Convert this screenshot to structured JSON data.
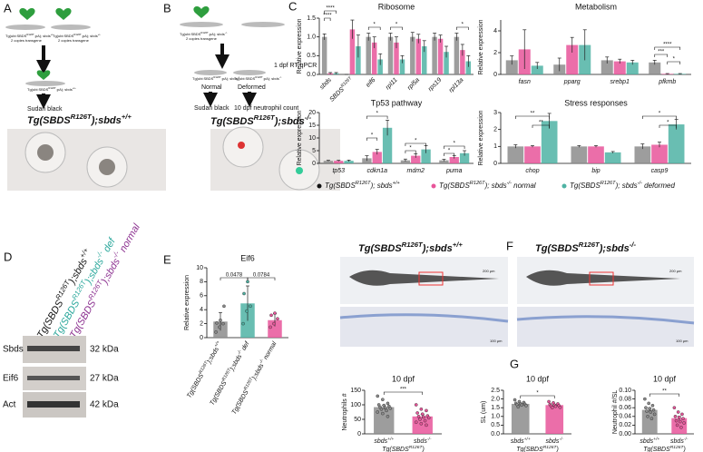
{
  "panel_labels": [
    "A",
    "B",
    "C",
    "D",
    "E",
    "F",
    "G"
  ],
  "panel_a": {
    "parents": [
      [
        "Tg(ubi:SBDS",
        "R126T",
        ";pA); sbds",
        "+/-"
      ],
      [
        "Tg(ubi:SBDS",
        "R126T",
        ";pA); sbds",
        "+/-"
      ]
    ],
    "parent_notes": [
      "2 copies transgene",
      "2 copies transgene"
    ],
    "offspring": [
      "Tg(ubi:SBDS",
      "R126T",
      ";pA); sbds",
      "+/+"
    ],
    "stain": "Sudan black",
    "title": [
      "Tg(SBDS",
      "R126T",
      ");sbds",
      "+/+"
    ]
  },
  "panel_b": {
    "parents": [
      [
        "Tg(ubi:SBDS",
        "R126T",
        ";pA); sbds",
        "-/-"
      ]
    ],
    "parent_notes": [
      "2 copies transgene"
    ],
    "offspring": [
      [
        "Tg(ubi:SBDS",
        "R126T",
        ";pA); sbds",
        "-/-"
      ],
      [
        "Tg(ubi:SBDS",
        "R126T",
        ";pA); sbds",
        "-/-"
      ]
    ],
    "step": "1 dpf RT-qPCR",
    "phenotypes": [
      "Normal",
      "Deformed"
    ],
    "outcomes": [
      "Sudan black",
      "10 dpf neutrophil count"
    ],
    "title": [
      "Tg(SBDS",
      "R126T",
      ");sbds",
      "-/-"
    ]
  },
  "panel_d": {
    "lanes": [
      [
        "Tg(SBDS",
        "R126T",
        ");sbds",
        "+/+"
      ],
      [
        "Tg(SBDS",
        "R126T",
        ");sbds",
        "-/-",
        " def"
      ],
      [
        "Tg(SBDS",
        "R126T",
        ");sbds",
        "-/-",
        " normal"
      ]
    ],
    "proteins": [
      "Sbds",
      "Eif6",
      "Act"
    ],
    "sizes": [
      "32 kDa",
      "27 kDa",
      "42 kDa"
    ]
  },
  "panel_f": {
    "titles": [
      [
        "Tg(SBDS",
        "R126T",
        ");sbds",
        "+/+"
      ],
      [
        "Tg(SBDS",
        "R126T",
        ");sbds",
        "-/-"
      ]
    ],
    "scale_bars": [
      "200 μm",
      "200 μm",
      "100 μm",
      "100 μm"
    ]
  },
  "chart_data": [
    {
      "type": "bar",
      "title": "Ribosome",
      "y_label": "Relative expression",
      "categories": [
        "sbds",
        [
          "SBDS",
          "R126T"
        ],
        "eif6",
        "rpl11",
        "rpl5a",
        "rps19",
        "rpl13a"
      ],
      "series": [
        {
          "name": [
            "Tg(SBDS",
            "R126T",
            "); sbds",
            "+/+"
          ],
          "color": "#8c8c8c",
          "values": [
            1.0,
            0,
            1.0,
            1.0,
            1.0,
            1.0,
            1.0
          ],
          "errors": [
            0.08,
            0,
            0.1,
            0.1,
            0.12,
            0.1,
            0.1
          ]
        },
        {
          "name": [
            "Tg(SBDS",
            "R126T",
            "); sbds",
            "-/-",
            " normal"
          ],
          "color": "#e8559a",
          "values": [
            0.03,
            1.2,
            0.85,
            0.85,
            0.95,
            0.95,
            0.65
          ],
          "errors": [
            0.02,
            0.25,
            0.15,
            0.15,
            0.12,
            0.1,
            0.15
          ]
        },
        {
          "name": [
            "Tg(SBDS",
            "R126T",
            "); sbds",
            "-/-",
            " deformed"
          ],
          "color": "#4fb3a4",
          "values": [
            0.03,
            0.75,
            0.4,
            0.4,
            0.75,
            0.6,
            0.35
          ],
          "errors": [
            0.02,
            0.3,
            0.15,
            0.1,
            0.15,
            0.15,
            0.15
          ]
        }
      ],
      "ylim": [
        0,
        1.5
      ],
      "yticks": [
        {
          "value": 0,
          "label": "0.0"
        },
        0.5,
        {
          "value": 1,
          "label": "1.0"
        },
        1.5
      ],
      "annotations": [
        "****",
        "****",
        "*",
        "*",
        "*"
      ]
    },
    {
      "type": "bar",
      "title": "Metabolism",
      "y_label": "Relative expression",
      "categories": [
        "fasn",
        "pparg",
        "srebp1",
        "pfkmb"
      ],
      "series": [
        {
          "color": "#8c8c8c",
          "values": [
            1.3,
            0.9,
            1.3,
            1.1
          ],
          "errors": [
            0.4,
            0.6,
            0.3,
            0.2
          ]
        },
        {
          "color": "#e8559a",
          "values": [
            2.3,
            2.7,
            1.2,
            0.05
          ],
          "errors": [
            1.8,
            0.7,
            0.2,
            0.03
          ]
        },
        {
          "color": "#4fb3a4",
          "values": [
            0.8,
            2.7,
            1.1,
            0.05
          ],
          "errors": [
            0.3,
            1.4,
            0.2,
            0.03
          ]
        }
      ],
      "ylim": [
        0,
        5
      ],
      "yticks": [
        0,
        2,
        4
      ],
      "annotations": [
        "****",
        "***",
        "*"
      ]
    },
    {
      "type": "bar",
      "title": "Tp53 pathway",
      "y_label": "Relative expression",
      "categories": [
        "tp53",
        "cdkn1a",
        "mdm2",
        "puma"
      ],
      "series": [
        {
          "color": "#8c8c8c",
          "values": [
            1,
            2,
            1.2,
            1.2
          ],
          "errors": [
            0.2,
            1,
            0.5,
            0.4
          ]
        },
        {
          "color": "#e8559a",
          "values": [
            1,
            4.5,
            3,
            2.5
          ],
          "errors": [
            0.2,
            1,
            0.8,
            0.6
          ]
        },
        {
          "color": "#4fb3a4",
          "values": [
            1,
            14,
            5.5,
            4
          ],
          "errors": [
            0.3,
            3,
            1.5,
            1
          ]
        }
      ],
      "ylim": [
        0,
        20
      ],
      "yticks": [
        0,
        5,
        10,
        15,
        20
      ],
      "annotations": [
        "*",
        "*",
        "*",
        "*",
        "*",
        "*"
      ]
    },
    {
      "type": "bar",
      "title": "Stress responses",
      "y_label": "Relative expression",
      "categories": [
        "chop",
        "bip",
        "casp9"
      ],
      "series": [
        {
          "color": "#8c8c8c",
          "values": [
            1,
            1,
            1
          ],
          "errors": [
            0.1,
            0.05,
            0.15
          ]
        },
        {
          "color": "#e8559a",
          "values": [
            1,
            1,
            1.1
          ],
          "errors": [
            0.05,
            0.05,
            0.15
          ]
        },
        {
          "color": "#4fb3a4",
          "values": [
            2.5,
            0.65,
            2.3
          ],
          "errors": [
            0.45,
            0.05,
            0.3
          ]
        }
      ],
      "ylim": [
        0,
        3
      ],
      "yticks": [
        0,
        1,
        2,
        3
      ],
      "annotations": [
        "**",
        "**",
        "*",
        "*"
      ]
    },
    {
      "type": "bar",
      "title": "Eif6",
      "y_label": "Relative expression",
      "categories": [
        [
          "Tg(SBDS",
          "R126T",
          ");sbds",
          "+/+"
        ],
        [
          "Tg(SBDS",
          "R126T",
          ");sbds",
          "-/-",
          " def"
        ],
        [
          "Tg(SBDS",
          "R126T",
          ");sbds",
          "-/-",
          " normal"
        ]
      ],
      "values": [
        2.3,
        4.9,
        2.5
      ],
      "errors": [
        1.3,
        2.5,
        0.9
      ],
      "colors": [
        "#8c8c8c",
        "#4fb3a4",
        "#e8559a"
      ],
      "points": [
        [
          0.8,
          1.5,
          2.0,
          2.1,
          2.5,
          4.5
        ],
        [
          2.0,
          3.8,
          4.5,
          6.3,
          8.0
        ],
        [
          1.5,
          2.0,
          2.7,
          3.2,
          3.5
        ]
      ],
      "ylim": [
        0,
        10
      ],
      "yticks": [
        0,
        2,
        4,
        6,
        8,
        10
      ],
      "annotations": [
        0.0478,
        0.0784
      ]
    },
    {
      "type": "bar",
      "title": "10 dpf",
      "y_label": "Neutrophils #",
      "x_label": [
        "Tg(SBDS",
        "R126T",
        ")"
      ],
      "categories": [
        [
          "sbds",
          "+/+"
        ],
        [
          "sbds",
          "-/-"
        ]
      ],
      "values": [
        92,
        60
      ],
      "errors": [
        7,
        7
      ],
      "colors": [
        "#8c8c8c",
        "#e8559a"
      ],
      "points": [
        [
          130,
          118,
          105,
          100,
          98,
          95,
          92,
          90,
          88,
          85,
          80,
          75,
          70,
          60
        ],
        [
          100,
          85,
          80,
          72,
          68,
          62,
          60,
          58,
          55,
          50,
          45,
          40,
          35,
          30
        ]
      ],
      "ylim": [
        0,
        150
      ],
      "yticks": [
        0,
        50,
        100,
        150
      ],
      "annotations": [
        "***"
      ]
    },
    {
      "type": "bar",
      "title": "10 dpf",
      "y_label": "SL (um)",
      "x_label": [
        "Tg(SBDS",
        "R126T",
        ")"
      ],
      "categories": [
        [
          "sbds",
          "+/+"
        ],
        [
          "sbds",
          "-/-"
        ]
      ],
      "values": [
        1.72,
        1.65
      ],
      "errors": [
        0.04,
        0.04
      ],
      "colors": [
        "#8c8c8c",
        "#e8559a"
      ],
      "points": [
        [
          1.95,
          1.85,
          1.8,
          1.75,
          1.72,
          1.7,
          1.68,
          1.65,
          1.62,
          1.55
        ],
        [
          1.85,
          1.78,
          1.72,
          1.68,
          1.65,
          1.62,
          1.6,
          1.58,
          1.52,
          1.5
        ]
      ],
      "ylim": [
        0,
        2.5
      ],
      "yticks": [
        {
          "value": 0,
          "label": "0.0"
        },
        0.5,
        {
          "value": 1,
          "label": "1.0"
        },
        1.5,
        {
          "value": 2,
          "label": "2.0"
        },
        2.5
      ],
      "annotations": [
        "*"
      ]
    },
    {
      "type": "bar",
      "title": "10 dpf",
      "y_label": "Neutrophil #/SL",
      "x_label": [
        "Tg(SBDS",
        "R126T",
        ")"
      ],
      "categories": [
        [
          "sbds",
          "+/+"
        ],
        [
          "sbds",
          "-/-"
        ]
      ],
      "values": [
        0.055,
        0.036
      ],
      "errors": [
        0.004,
        0.004
      ],
      "colors": [
        "#8c8c8c",
        "#e8559a"
      ],
      "points": [
        [
          0.08,
          0.07,
          0.065,
          0.06,
          0.058,
          0.055,
          0.052,
          0.05,
          0.045,
          0.04,
          0.035
        ],
        [
          0.06,
          0.05,
          0.045,
          0.04,
          0.038,
          0.035,
          0.03,
          0.028,
          0.025,
          0.02,
          0.015
        ]
      ],
      "ylim": [
        0,
        0.1
      ],
      "yticks": [
        {
          "value": 0,
          "label": "0.00"
        },
        0.02,
        0.04,
        0.06,
        0.08,
        {
          "value": 0.1,
          "label": "0.10"
        }
      ],
      "annotations": [
        "**"
      ]
    }
  ]
}
